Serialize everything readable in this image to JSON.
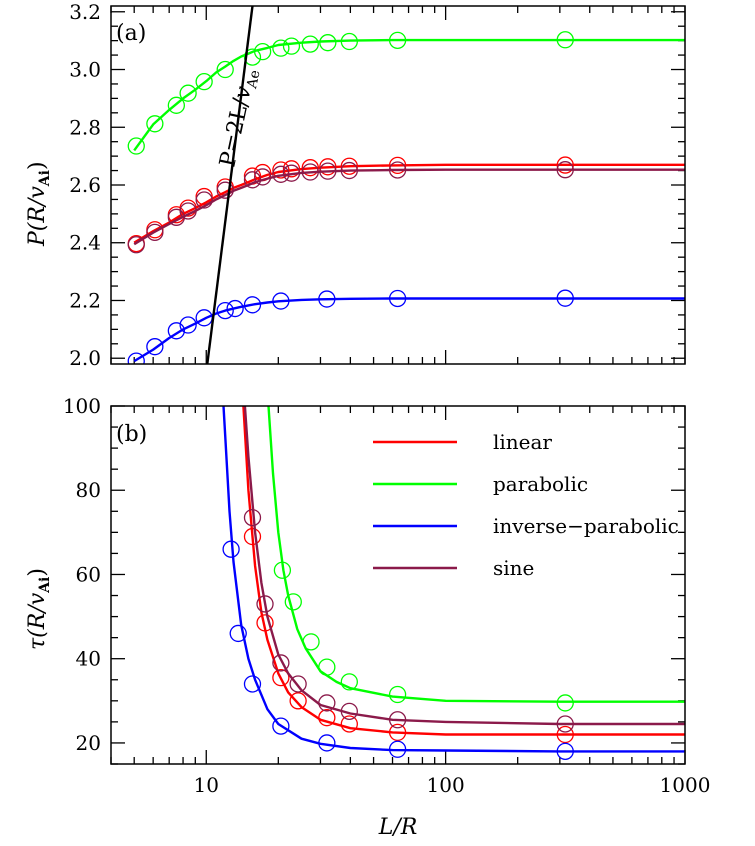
{
  "chart_data": [
    {
      "panel_label": "(a)",
      "type": "line",
      "xscale": "log",
      "xlim": [
        4,
        1000
      ],
      "ylim": [
        1.98,
        3.22
      ],
      "ylabel_parts": {
        "base": "P(R/",
        "sym": "v",
        "sub": "Ai",
        "close": ")"
      },
      "yticks": [
        "2.0",
        "2.2",
        "2.4",
        "2.6",
        "2.8",
        "3.0",
        "3.2"
      ],
      "ytick_values": [
        2.0,
        2.2,
        2.4,
        2.6,
        2.8,
        3.0,
        3.2
      ],
      "reference_line": {
        "label_parts": {
          "main": "P=2L/",
          "sym": "v",
          "sub": "Ae"
        },
        "color": "#000000",
        "x": [
          10.1,
          15.6
        ],
        "y": [
          1.98,
          3.22
        ]
      },
      "series": [
        {
          "color": "#00ff00",
          "curve_x": [
            5,
            6,
            7,
            8,
            9,
            10,
            11,
            12,
            13,
            14,
            15,
            16,
            18,
            20,
            25,
            30,
            40,
            60,
            100,
            300,
            1000
          ],
          "curve_y": [
            2.72,
            2.81,
            2.86,
            2.9,
            2.93,
            2.96,
            2.99,
            3.01,
            3.03,
            3.045,
            3.055,
            3.065,
            3.075,
            3.085,
            3.093,
            3.097,
            3.1,
            3.102,
            3.102,
            3.102,
            3.102
          ],
          "markers_x": [
            5.1,
            6.1,
            7.5,
            8.4,
            9.8,
            12,
            15.6,
            17.2,
            20.5,
            22.7,
            27.2,
            32.2,
            39.6,
            63,
            316
          ],
          "markers_y": [
            2.735,
            2.812,
            2.876,
            2.918,
            2.958,
            3.0,
            3.043,
            3.062,
            3.074,
            3.081,
            3.088,
            3.093,
            3.097,
            3.101,
            3.103
          ]
        },
        {
          "color": "#ff0000",
          "curve_x": [
            5,
            6,
            7,
            8,
            9,
            10,
            11,
            12,
            13,
            14,
            15,
            16,
            18,
            20,
            25,
            30,
            40,
            60,
            100,
            300,
            1000
          ],
          "curve_y": [
            2.4,
            2.44,
            2.47,
            2.5,
            2.52,
            2.54,
            2.56,
            2.575,
            2.59,
            2.6,
            2.61,
            2.62,
            2.635,
            2.645,
            2.655,
            2.66,
            2.665,
            2.668,
            2.67,
            2.67,
            2.67
          ],
          "markers_x": [
            5.1,
            6.1,
            7.5,
            8.4,
            9.8,
            12,
            15.6,
            17.2,
            20.5,
            22.7,
            27.2,
            32.2,
            39.6,
            63,
            316
          ],
          "markers_y": [
            2.397,
            2.445,
            2.497,
            2.52,
            2.56,
            2.593,
            2.631,
            2.643,
            2.652,
            2.656,
            2.66,
            2.663,
            2.665,
            2.668,
            2.669
          ]
        },
        {
          "color": "#8b1a4a",
          "curve_x": [
            5,
            6,
            7,
            8,
            9,
            10,
            11,
            12,
            13,
            14,
            15,
            16,
            18,
            20,
            25,
            30,
            40,
            60,
            100,
            300,
            1000
          ],
          "curve_y": [
            2.395,
            2.435,
            2.465,
            2.49,
            2.51,
            2.53,
            2.55,
            2.565,
            2.58,
            2.59,
            2.6,
            2.61,
            2.622,
            2.632,
            2.642,
            2.646,
            2.65,
            2.652,
            2.653,
            2.653,
            2.653
          ],
          "markers_x": [
            5.1,
            6.1,
            7.5,
            8.4,
            9.8,
            12,
            15.6,
            17.2,
            20.5,
            22.7,
            27.2,
            32.2,
            39.6,
            63,
            316
          ],
          "markers_y": [
            2.393,
            2.436,
            2.488,
            2.51,
            2.548,
            2.582,
            2.618,
            2.628,
            2.637,
            2.641,
            2.645,
            2.648,
            2.65,
            2.652,
            2.653
          ]
        },
        {
          "color": "#0000ff",
          "curve_x": [
            5,
            6,
            7,
            8,
            9,
            10,
            11,
            12,
            13,
            14,
            15,
            16,
            18,
            20,
            25,
            30,
            40,
            60,
            100,
            300,
            1000
          ],
          "curve_y": [
            1.99,
            2.03,
            2.07,
            2.1,
            2.12,
            2.14,
            2.155,
            2.165,
            2.172,
            2.178,
            2.183,
            2.187,
            2.193,
            2.197,
            2.202,
            2.204,
            2.206,
            2.207,
            2.207,
            2.207,
            2.207
          ],
          "markers_x": [
            5.1,
            6.1,
            7.5,
            8.4,
            9.8,
            12,
            13.2,
            15.6,
            20.5,
            31.9,
            63,
            316
          ],
          "markers_y": [
            1.99,
            2.04,
            2.095,
            2.115,
            2.14,
            2.165,
            2.172,
            2.185,
            2.198,
            2.205,
            2.207,
            2.208
          ]
        }
      ]
    },
    {
      "panel_label": "(b)",
      "type": "line",
      "xscale": "log",
      "xlim": [
        4,
        1000
      ],
      "ylim": [
        15,
        100
      ],
      "xlabel": "L/R",
      "ylabel_parts": {
        "base": "τ(R/",
        "sym": "v",
        "sub": "Ai",
        "close": ")"
      },
      "yticks": [
        "20",
        "40",
        "60",
        "80",
        "100"
      ],
      "ytick_values": [
        20,
        40,
        60,
        80,
        100
      ],
      "xticks": [
        "10",
        "100",
        "1000"
      ],
      "xtick_values": [
        10,
        100,
        1000
      ],
      "legend": {
        "placement": "top-right",
        "entries": [
          {
            "label": "linear",
            "color": "#ff0000"
          },
          {
            "label": "parabolic",
            "color": "#00ff00"
          },
          {
            "label": "inverse−parabolic",
            "color": "#0000ff"
          },
          {
            "label": "sine",
            "color": "#8b1a4a"
          }
        ]
      },
      "series": [
        {
          "name": "linear",
          "color": "#ff0000",
          "curve_x": [
            14.3,
            15,
            16,
            17,
            18,
            20,
            22,
            25,
            30,
            40,
            60,
            100,
            300,
            1000
          ],
          "curve_y": [
            100,
            80,
            62,
            51,
            44.5,
            36.5,
            32,
            28.5,
            25.5,
            23.5,
            22.5,
            22,
            22,
            22
          ],
          "markers_x": [
            15.6,
            17.6,
            20.5,
            24.2,
            31.9,
            39.6,
            63,
            316
          ],
          "markers_y": [
            69,
            48.5,
            35.5,
            30,
            26,
            24.5,
            22.5,
            22
          ]
        },
        {
          "name": "parabolic",
          "color": "#00ff00",
          "curve_x": [
            18.2,
            19,
            20,
            21,
            22,
            24,
            26,
            30,
            35,
            40,
            60,
            100,
            300,
            1000
          ],
          "curve_y": [
            100,
            84,
            70,
            61,
            55,
            47,
            42.5,
            37,
            34.5,
            33,
            31,
            30,
            29.8,
            29.8
          ],
          "markers_x": [
            20.8,
            23.1,
            27.4,
            31.9,
            39.6,
            63,
            316
          ],
          "markers_y": [
            61,
            53.5,
            44,
            38,
            34.5,
            31.5,
            29.5
          ]
        },
        {
          "name": "inverse−parabolic",
          "color": "#0000ff",
          "curve_x": [
            11.8,
            12,
            12.5,
            13,
            14,
            15,
            16,
            18,
            20,
            25,
            30,
            40,
            60,
            100,
            300,
            1000
          ],
          "curve_y": [
            100,
            93,
            75,
            63,
            48,
            40,
            35,
            28,
            24.5,
            21,
            19.8,
            18.8,
            18.3,
            18.2,
            18,
            18
          ],
          "markers_x": [
            12.7,
            13.6,
            15.6,
            20.5,
            31.9,
            63,
            316
          ],
          "markers_y": [
            66,
            46,
            34,
            24,
            20,
            18.5,
            18
          ]
        },
        {
          "name": "sine",
          "color": "#8b1a4a",
          "curve_x": [
            14.5,
            15,
            16,
            17,
            18,
            20,
            22,
            25,
            30,
            40,
            60,
            100,
            300,
            1000
          ],
          "curve_y": [
            100,
            88,
            70,
            58,
            50,
            41,
            36.5,
            32.5,
            29,
            27,
            25.5,
            25,
            24.5,
            24.5
          ],
          "markers_x": [
            15.6,
            17.6,
            20.5,
            24.2,
            31.9,
            39.6,
            63,
            316
          ],
          "markers_y": [
            73.5,
            53,
            39,
            34,
            29.5,
            27.5,
            25.5,
            24.5
          ]
        }
      ]
    }
  ]
}
